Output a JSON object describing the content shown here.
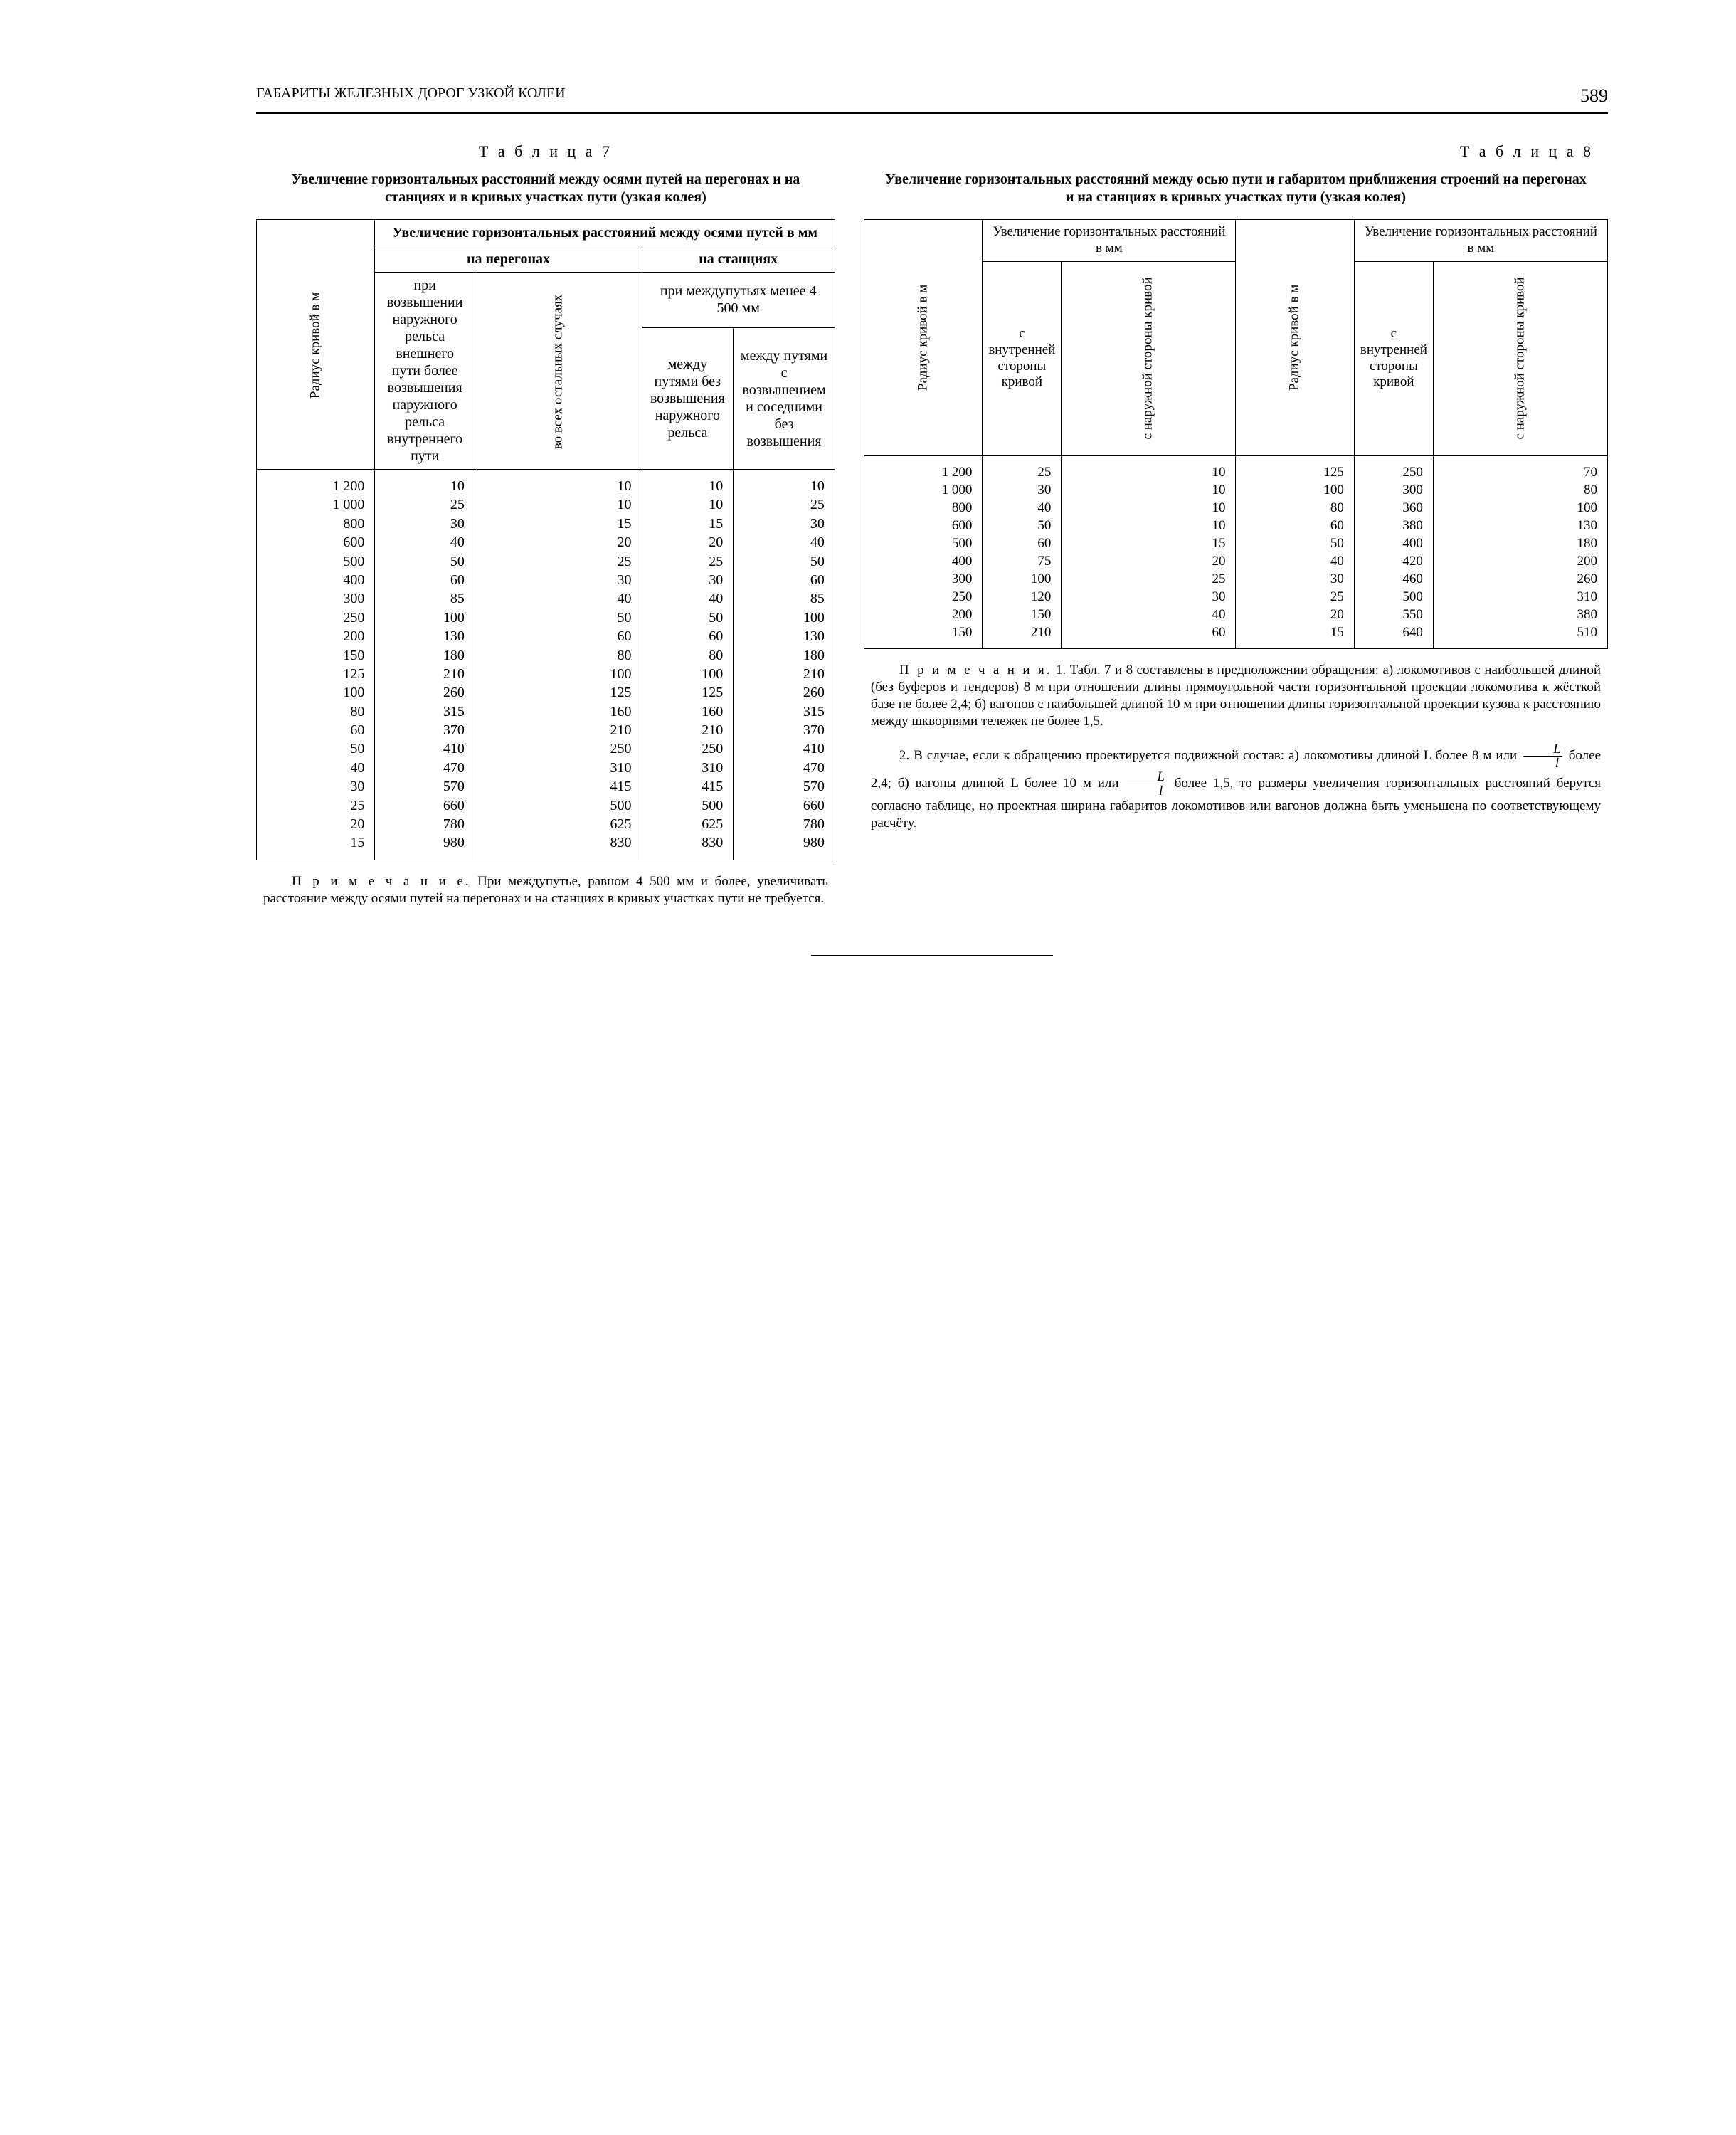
{
  "header": {
    "running_title": "ГАБАРИТЫ ЖЕЛЕЗНЫХ ДОРОГ УЗКОЙ КОЛЕИ",
    "page_number": "589"
  },
  "table7": {
    "label": "Т а б л и ц а  7",
    "caption": "Увеличение горизонтальных расстояний между осями путей на перегонах и на станциях и в кривых участках пути (узкая колея)",
    "head_top": "Увеличение горизонтальных расстояний между осями путей в мм",
    "row_label": "Радиус кривой в м",
    "col_peregon": "на перегонах",
    "col_station": "на станциях",
    "col_p1": "при возвышении наружного рельса внешнего пути более возвышения наружного рельса внутреннего пути",
    "col_p2": "во всех остальных случаях",
    "col_s_top": "при междупутьях менее 4 500 мм",
    "col_s1": "между путями без возвышения наружного рельса",
    "col_s2": "между путями с возвышением и соседними без возвышения",
    "radius": [
      "1 200",
      "1 000",
      "800",
      "600",
      "500",
      "400",
      "300",
      "250",
      "200",
      "150",
      "125",
      "100",
      "80",
      "60",
      "50",
      "40",
      "30",
      "25",
      "20",
      "15"
    ],
    "c1": [
      "10",
      "25",
      "30",
      "40",
      "50",
      "60",
      "85",
      "100",
      "130",
      "180",
      "210",
      "260",
      "315",
      "370",
      "410",
      "470",
      "570",
      "660",
      "780",
      "980"
    ],
    "c2": [
      "10",
      "10",
      "15",
      "20",
      "25",
      "30",
      "40",
      "50",
      "60",
      "80",
      "100",
      "125",
      "160",
      "210",
      "250",
      "310",
      "415",
      "500",
      "625",
      "830"
    ],
    "c3": [
      "10",
      "10",
      "15",
      "20",
      "25",
      "30",
      "40",
      "50",
      "60",
      "80",
      "100",
      "125",
      "160",
      "210",
      "250",
      "310",
      "415",
      "500",
      "625",
      "830"
    ],
    "c4": [
      "10",
      "25",
      "30",
      "40",
      "50",
      "60",
      "85",
      "100",
      "130",
      "180",
      "210",
      "260",
      "315",
      "370",
      "410",
      "470",
      "570",
      "660",
      "780",
      "980"
    ],
    "note_label": "П р и м е ч а н и е.",
    "note": " При междупутье, равном 4 500 мм и более, увеличивать расстояние между осями путей на перегонах и на станциях в кривых участках пути не требуется."
  },
  "table8": {
    "label": "Т а б л и ц а  8",
    "caption": "Увеличение горизонтальных расстояний между осью пути и габаритом приближения строений на перегонах и на станциях в кривых участках пути (узкая колея)",
    "group": "Увеличение горизонтальных расстояний в мм",
    "row_label": "Радиус кривой в м",
    "col_inner": "с внутренней стороны кривой",
    "col_outer": "с наружной стороны кривой",
    "radius_a": [
      "1 200",
      "1 000",
      "800",
      "600",
      "500",
      "400",
      "300",
      "250",
      "200",
      "150"
    ],
    "ca1": [
      "25",
      "30",
      "40",
      "50",
      "60",
      "75",
      "100",
      "120",
      "150",
      "210"
    ],
    "ca2": [
      "10",
      "10",
      "10",
      "10",
      "15",
      "20",
      "25",
      "30",
      "40",
      "60"
    ],
    "radius_b": [
      "125",
      "100",
      "80",
      "60",
      "50",
      "40",
      "30",
      "25",
      "20",
      "15"
    ],
    "cb1": [
      "250",
      "300",
      "360",
      "380",
      "400",
      "420",
      "460",
      "500",
      "550",
      "640"
    ],
    "cb2": [
      "70",
      "80",
      "100",
      "130",
      "180",
      "200",
      "260",
      "310",
      "380",
      "510"
    ],
    "notes_label": "П р и м е ч а н и я.",
    "note1": " 1. Табл. 7 и 8 составлены в предположении обращения: а) локомотивов с наибольшей длиной (без буферов и тендеров) 8 м при отношении длины прямоугольной части горизонтальной проекции локомотива к жёсткой базе не более 2,4; б) вагонов с наибольшей длиной 10 м при отношении длины горизонтальной проекции кузова к расстоянию между шкворнями тележек не более 1,5.",
    "note2a": "2. В случае, если к обращению проектируется подвижной состав: а) локомотивы длиной L более 8 м или",
    "note2b": " более 2,4; б) вагоны длиной L более 10 м или",
    "note2c": " более 1,5, то размеры увеличения горизонтальных расстояний берутся согласно таблице, но проектная ширина габаритов локомотивов или вагонов должна быть уменьшена по соответствующему расчёту.",
    "frac_num": "L",
    "frac_den": "l"
  }
}
